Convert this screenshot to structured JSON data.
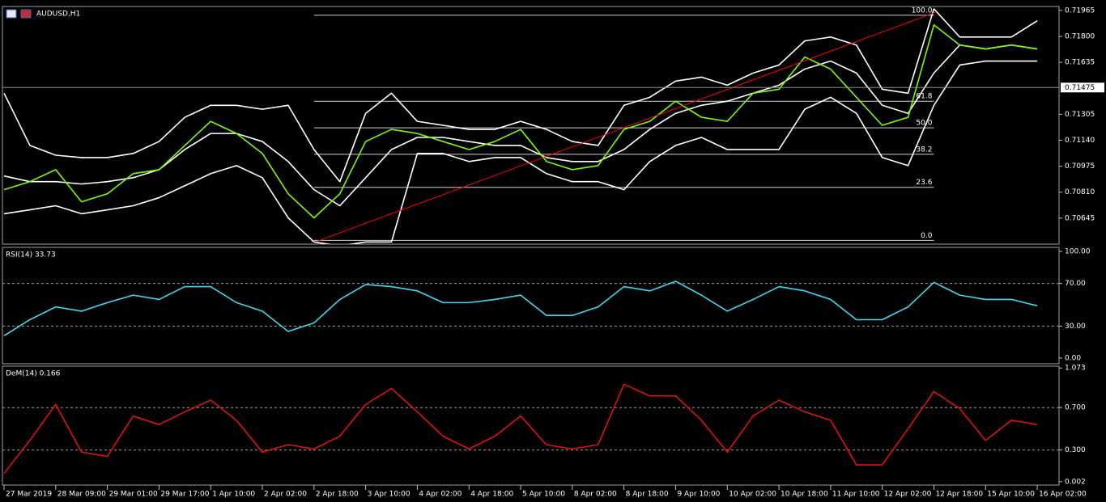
{
  "chart_data": [
    {
      "type": "line",
      "title": "AUDUSD,H1",
      "xlim": [
        0,
        40.75
      ],
      "ylim": [
        0.7048,
        0.7199
      ],
      "yticks": [
        0.71965,
        {
          "value": 0.718,
          "label": "0.71800"
        },
        0.71635,
        0.71305,
        {
          "value": 0.7114,
          "label": "0.71140"
        },
        0.70975,
        {
          "value": 0.7081,
          "label": "0.70810"
        },
        0.70645
      ],
      "current_price": 0.71475,
      "series": [
        {
          "color": "#ffffff",
          "values": [
            0.71439,
            0.71107,
            0.71045,
            0.7103,
            0.7103,
            0.71056,
            0.71132,
            0.71286,
            0.71362,
            0.71362,
            0.71337,
            0.71362,
            0.71081,
            0.70877,
            0.71311,
            0.71439,
            0.7126,
            0.71235,
            0.71209,
            0.71209,
            0.7126,
            0.71209,
            0.71132,
            0.71107,
            0.71362,
            0.71413,
            0.71516,
            0.71541,
            0.7149,
            0.71567,
            0.71618,
            0.71771,
            0.71796,
            0.71745,
            0.71464,
            0.71439,
            0.71975,
            0.71796,
            0.71796,
            0.71796,
            0.71899
          ]
        },
        {
          "color": "#ffffff",
          "values": [
            0.70913,
            0.70877,
            0.70877,
            0.70862,
            0.70877,
            0.70902,
            0.70953,
            0.71081,
            0.71183,
            0.71183,
            0.71132,
            0.71005,
            0.70826,
            0.70724,
            0.70902,
            0.71081,
            0.71158,
            0.71158,
            0.71132,
            0.71107,
            0.71107,
            0.7103,
            0.71005,
            0.71005,
            0.71081,
            0.71209,
            0.71311,
            0.71362,
            0.71388,
            0.71439,
            0.7149,
            0.71592,
            0.71643,
            0.71567,
            0.71362,
            0.71311,
            0.71567,
            0.71745,
            0.7172,
            0.71745,
            0.7172
          ]
        },
        {
          "color": "#ffffff",
          "values": [
            0.70673,
            0.70698,
            0.70724,
            0.70673,
            0.70698,
            0.70724,
            0.70775,
            0.70851,
            0.70928,
            0.70979,
            0.70902,
            0.70647,
            0.70494,
            0.70468,
            0.70494,
            0.70494,
            0.71056,
            0.71056,
            0.71005,
            0.7103,
            0.7103,
            0.70928,
            0.70877,
            0.70877,
            0.70826,
            0.71005,
            0.71107,
            0.71158,
            0.71081,
            0.71081,
            0.71081,
            0.71337,
            0.71413,
            0.71311,
            0.7103,
            0.70979,
            0.71362,
            0.71618,
            0.71643,
            0.71643,
            0.71643
          ]
        },
        {
          "color": "#7cfc00",
          "values": [
            0.70826,
            0.70877,
            0.70953,
            0.70749,
            0.708,
            0.70928,
            0.70953,
            0.71107,
            0.7126,
            0.71183,
            0.71056,
            0.708,
            0.70647,
            0.708,
            0.71132,
            0.71209,
            0.71183,
            0.71132,
            0.71081,
            0.71132,
            0.71209,
            0.71005,
            0.70953,
            0.70979,
            0.71209,
            0.7126,
            0.71388,
            0.71286,
            0.7126,
            0.71439,
            0.71464,
            0.71669,
            0.71592,
            0.71413,
            0.71235,
            0.71286,
            0.71873,
            0.71745,
            0.7172,
            0.71745,
            0.7172
          ]
        }
      ],
      "trendline": {
        "color": "#ff0000",
        "x": [
          12.1,
          36.1
        ],
        "y": [
          0.70497,
          0.71955
        ]
      },
      "fibonacci": {
        "x": [
          12,
          36
        ],
        "levels": [
          {
            "value": 0.71934,
            "label": "100.0"
          },
          {
            "value": 0.71388,
            "label": "61.8"
          },
          {
            "value": 0.71219,
            "label": "50.0"
          },
          {
            "value": 0.71051,
            "label": "38.2"
          },
          {
            "value": 0.70841,
            "label": "23.6"
          },
          {
            "value": 0.70504,
            "label": "0.0"
          }
        ]
      }
    },
    {
      "type": "line",
      "title": "RSI(14) 33.73",
      "xlim": [
        0,
        40.75
      ],
      "ylim": [
        -5.3,
        103.8
      ],
      "yticks": [
        {
          "value": 100,
          "label": "100.00"
        },
        {
          "value": 70,
          "label": "70.00"
        },
        {
          "value": 30,
          "label": "30.00"
        },
        {
          "value": 0,
          "label": "0.00"
        }
      ],
      "levels": [
        70,
        30
      ],
      "series": [
        {
          "color": "#3fd8f0",
          "values": [
            21,
            36,
            48,
            44,
            52,
            59,
            55,
            67,
            67,
            52,
            44,
            25,
            33,
            55,
            69,
            67,
            63,
            52,
            52,
            55,
            59,
            40,
            40,
            48,
            67,
            63,
            72,
            59,
            44,
            55,
            67,
            63,
            55,
            36,
            36,
            48,
            71,
            59,
            55,
            55,
            49
          ]
        }
      ]
    },
    {
      "type": "line",
      "title": "DeM(14) 0.166",
      "xlim": [
        0,
        40.75
      ],
      "ylim": [
        -0.03,
        1.09
      ],
      "yticks": [
        1.073,
        {
          "value": 0.7,
          "label": "0.700"
        },
        {
          "value": 0.3,
          "label": "0.300"
        },
        0.002
      ],
      "levels": [
        0.7,
        0.3
      ],
      "xticks": [
        {
          "value": 0,
          "label": "27 Mar 2019"
        },
        {
          "value": 2,
          "label": "28 Mar 09:00"
        },
        {
          "value": 4,
          "label": "29 Mar 01:00"
        },
        {
          "value": 6,
          "label": "29 Mar 17:00"
        },
        {
          "value": 8,
          "label": "1 Apr 10:00"
        },
        {
          "value": 10,
          "label": "2 Apr 02:00"
        },
        {
          "value": 12,
          "label": "2 Apr 18:00"
        },
        {
          "value": 14,
          "label": "3 Apr 10:00"
        },
        {
          "value": 16,
          "label": "4 Apr 02:00"
        },
        {
          "value": 18,
          "label": "4 Apr 18:00"
        },
        {
          "value": 20,
          "label": "5 Apr 10:00"
        },
        {
          "value": 22,
          "label": "8 Apr 02:00"
        },
        {
          "value": 24,
          "label": "8 Apr 18:00"
        },
        {
          "value": 26,
          "label": "9 Apr 10:00"
        },
        {
          "value": 28,
          "label": "10 Apr 02:00"
        },
        {
          "value": 30,
          "label": "10 Apr 18:00"
        },
        {
          "value": 32,
          "label": "11 Apr 10:00"
        },
        {
          "value": 34,
          "label": "12 Apr 02:00"
        },
        {
          "value": 36,
          "label": "12 Apr 18:00"
        },
        {
          "value": 38,
          "label": "15 Apr 10:00"
        },
        {
          "value": 40,
          "label": "16 Apr 02:00"
        }
      ],
      "series": [
        {
          "color": "#e01010",
          "values": [
            0.08,
            0.39,
            0.73,
            0.28,
            0.24,
            0.62,
            0.54,
            0.66,
            0.77,
            0.58,
            0.28,
            0.35,
            0.31,
            0.43,
            0.73,
            0.88,
            0.66,
            0.43,
            0.31,
            0.43,
            0.62,
            0.35,
            0.31,
            0.35,
            0.92,
            0.81,
            0.81,
            0.58,
            0.28,
            0.62,
            0.77,
            0.66,
            0.58,
            0.16,
            0.16,
            0.5,
            0.85,
            0.69,
            0.39,
            0.58,
            0.54
          ]
        }
      ]
    }
  ]
}
